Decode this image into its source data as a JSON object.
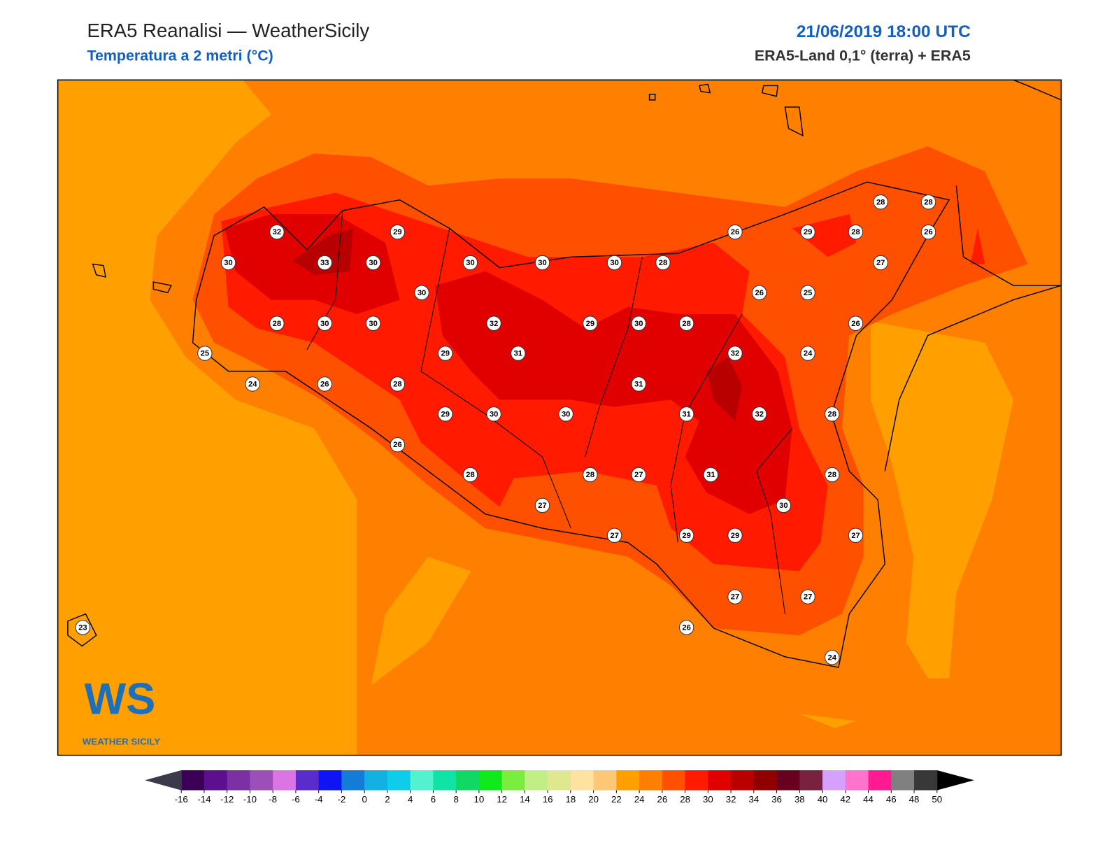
{
  "header": {
    "title": "ERA5 Reanalisi — WeatherSicily",
    "subtitle": "Temperatura a 2 metri (°C)",
    "date": "21/06/2019 18:00 UTC",
    "source": "ERA5-Land 0,1° (terra) + ERA5"
  },
  "logo": {
    "mark": "WS",
    "name": "WEATHER SICILY"
  },
  "stations": [
    32,
    29,
    30,
    33,
    30,
    30,
    30,
    30,
    28,
    30,
    28,
    30,
    30,
    32,
    29,
    30,
    28,
    25,
    29,
    31,
    24,
    26,
    28,
    31,
    29,
    30,
    30,
    31,
    32,
    32,
    26,
    28,
    28,
    27,
    31,
    27,
    27,
    29,
    29,
    30,
    26,
    29,
    28,
    26,
    28,
    28,
    27,
    26,
    25,
    26,
    24,
    28,
    28,
    27,
    27,
    27,
    26,
    24,
    23
  ],
  "colorbar": {
    "ticks": [
      -16,
      -14,
      -12,
      -10,
      -8,
      -6,
      -4,
      -2,
      0,
      2,
      4,
      6,
      8,
      10,
      12,
      14,
      16,
      18,
      20,
      22,
      24,
      26,
      28,
      30,
      32,
      34,
      36,
      38,
      40,
      42,
      44,
      46,
      48,
      50
    ],
    "colors": [
      "#3d0057",
      "#5c108f",
      "#7b30a3",
      "#9c4fb8",
      "#dc74e6",
      "#5b2ccc",
      "#0f14f5",
      "#137bd8",
      "#13b1e3",
      "#0fccea",
      "#53f1cf",
      "#10e3a6",
      "#11d865",
      "#10e91c",
      "#79ee3f",
      "#c2ef85",
      "#dfe88f",
      "#fee2a2",
      "#fcc875",
      "#ffa000",
      "#ff8000",
      "#ff5000",
      "#ff1a00",
      "#e00000",
      "#b80000",
      "#900000",
      "#6a0020",
      "#7a2040",
      "#d5a0ff",
      "#ff73cc",
      "#ff1a92",
      "#808080",
      "#383838"
    ],
    "under": "#3a3a4a",
    "over": "#000000"
  }
}
